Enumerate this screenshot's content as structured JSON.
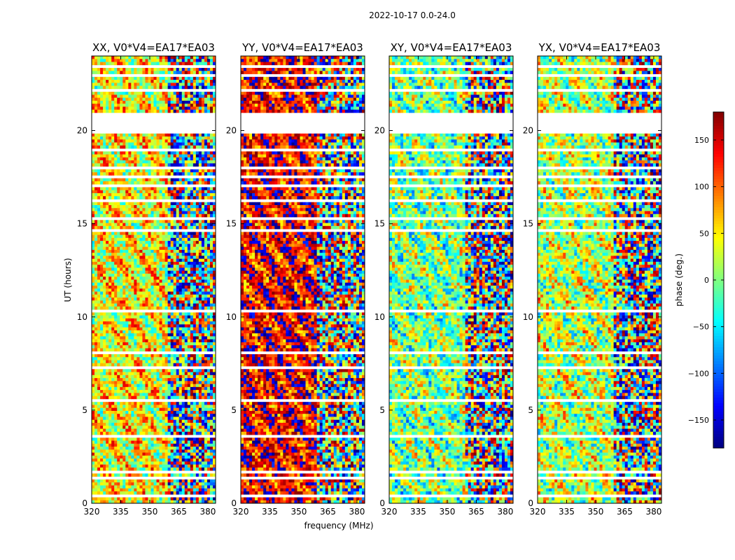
{
  "figure": {
    "suptitle": "2022-10-17 0.0-24.0"
  },
  "chart_data": {
    "type": "heatmap",
    "panels": [
      {
        "title": "XX, V0*V4=EA17*EA03",
        "mean_phase": 45
      },
      {
        "title": "YY, V0*V4=EA17*EA03",
        "mean_phase": 140
      },
      {
        "title": "XY, V0*V4=EA17*EA03",
        "mean_phase": 0
      },
      {
        "title": "YX, V0*V4=EA17*EA03",
        "mean_phase": 20
      }
    ],
    "xlabel": "frequency (MHz)",
    "ylabel": "UT (hours)",
    "xlim": [
      320,
      384
    ],
    "ylim": [
      0,
      24
    ],
    "xticks": [
      320,
      335,
      350,
      365,
      380
    ],
    "yticks": [
      0,
      5,
      10,
      15,
      20
    ],
    "gaps_hours": [
      [
        0.3,
        0.5
      ],
      [
        1.3,
        1.45
      ],
      [
        1.6,
        1.7
      ],
      [
        3.55,
        3.7
      ],
      [
        5.5,
        5.55
      ],
      [
        6.65,
        6.75
      ],
      [
        7.2,
        7.3
      ],
      [
        8.0,
        8.1
      ],
      [
        10.25,
        10.35
      ],
      [
        14.6,
        14.7
      ],
      [
        15.2,
        15.3
      ],
      [
        16.2,
        16.35
      ],
      [
        16.9,
        17.1
      ],
      [
        17.5,
        17.6
      ],
      [
        18.0,
        18.15
      ],
      [
        18.9,
        19.0
      ],
      [
        19.3,
        19.4
      ],
      [
        19.9,
        21.0
      ],
      [
        22.1,
        22.25
      ],
      [
        22.85,
        23.0
      ],
      [
        23.4,
        23.6
      ]
    ],
    "colorbar": {
      "label": "phase (deg.)",
      "range": [
        -180,
        180
      ],
      "ticks": [
        150,
        100,
        50,
        0,
        -50,
        -100,
        -150
      ],
      "tick_labels": [
        "150",
        "100",
        "50",
        "0",
        "−50",
        "−100",
        "−150"
      ],
      "colormap": "jet"
    },
    "grid": false
  }
}
